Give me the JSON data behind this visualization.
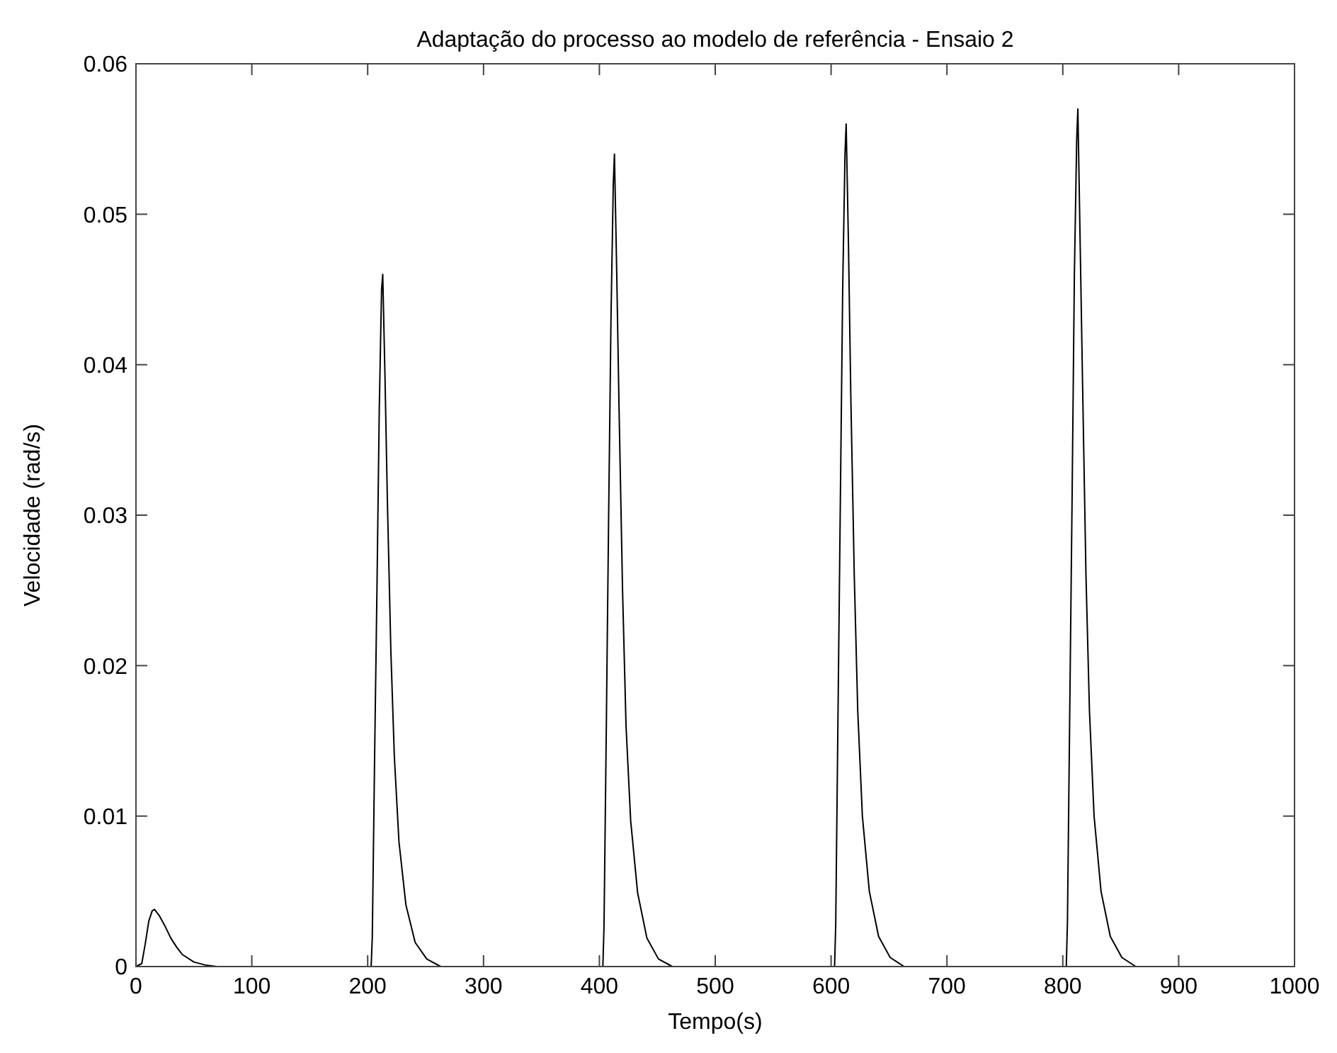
{
  "chart_data": {
    "type": "line",
    "title": "Adaptação do processo ao modelo de referência - Ensaio 2",
    "xlabel": "Tempo(s)",
    "ylabel": "Velocidade (rad/s)",
    "xlim": [
      0,
      1000
    ],
    "xticks": [
      0,
      100,
      200,
      300,
      400,
      500,
      600,
      700,
      800,
      900,
      1000
    ],
    "ylim": [
      0,
      0.06
    ],
    "yticks": [
      0,
      0.01,
      0.02,
      0.03,
      0.04,
      0.05,
      0.06
    ],
    "grid": false,
    "line_style": "solid",
    "series": [
      {
        "color": "#000000",
        "x": [
          0,
          5,
          8,
          11,
          14,
          16,
          20,
          25,
          30,
          35,
          40,
          50,
          60,
          70,
          203,
          204,
          206,
          208,
          210,
          212,
          213,
          215,
          217,
          220,
          223,
          227,
          233,
          241,
          251,
          263,
          403,
          404,
          406,
          408,
          410,
          412,
          413,
          415,
          417,
          420,
          423,
          427,
          433,
          441,
          451,
          463,
          603,
          604,
          606,
          608,
          610,
          612,
          613,
          615,
          617,
          620,
          623,
          627,
          633,
          641,
          651,
          663,
          803,
          804,
          806,
          808,
          810,
          812,
          813,
          815,
          817,
          820,
          823,
          827,
          833,
          841,
          851,
          863,
          1000
        ],
        "values": [
          0,
          0.0002,
          0.0015,
          0.003,
          0.0037,
          0.0038,
          0.0034,
          0.0027,
          0.0019,
          0.0013,
          0.0008,
          0.0003,
          0.0001,
          0,
          0,
          0.002,
          0.014,
          0.025,
          0.037,
          0.045,
          0.046,
          0.039,
          0.031,
          0.021,
          0.014,
          0.0083,
          0.0041,
          0.0016,
          0.0005,
          0,
          0,
          0.0027,
          0.016,
          0.03,
          0.043,
          0.052,
          0.054,
          0.046,
          0.037,
          0.025,
          0.016,
          0.0097,
          0.0049,
          0.0019,
          0.0005,
          0,
          0,
          0.0028,
          0.017,
          0.031,
          0.045,
          0.054,
          0.056,
          0.048,
          0.038,
          0.026,
          0.017,
          0.01,
          0.005,
          0.002,
          0.0006,
          0,
          0,
          0.0029,
          0.017,
          0.031,
          0.046,
          0.055,
          0.057,
          0.048,
          0.039,
          0.026,
          0.017,
          0.01,
          0.005,
          0.002,
          0.0006,
          0,
          0
        ]
      }
    ]
  }
}
